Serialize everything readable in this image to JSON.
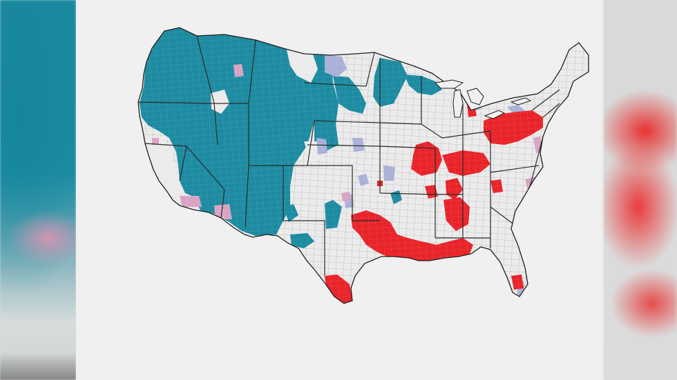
{
  "colors": {
    "background": "#f0f0f0",
    "land": "#ebebeb",
    "teal": "#1d8ba1",
    "red": "#e8242a",
    "lavender": "#aab0d8",
    "pink": "#d9a3c4",
    "border": "#2a2a2a"
  },
  "legend_categories": [
    "teal",
    "red",
    "lavender",
    "pink"
  ]
}
